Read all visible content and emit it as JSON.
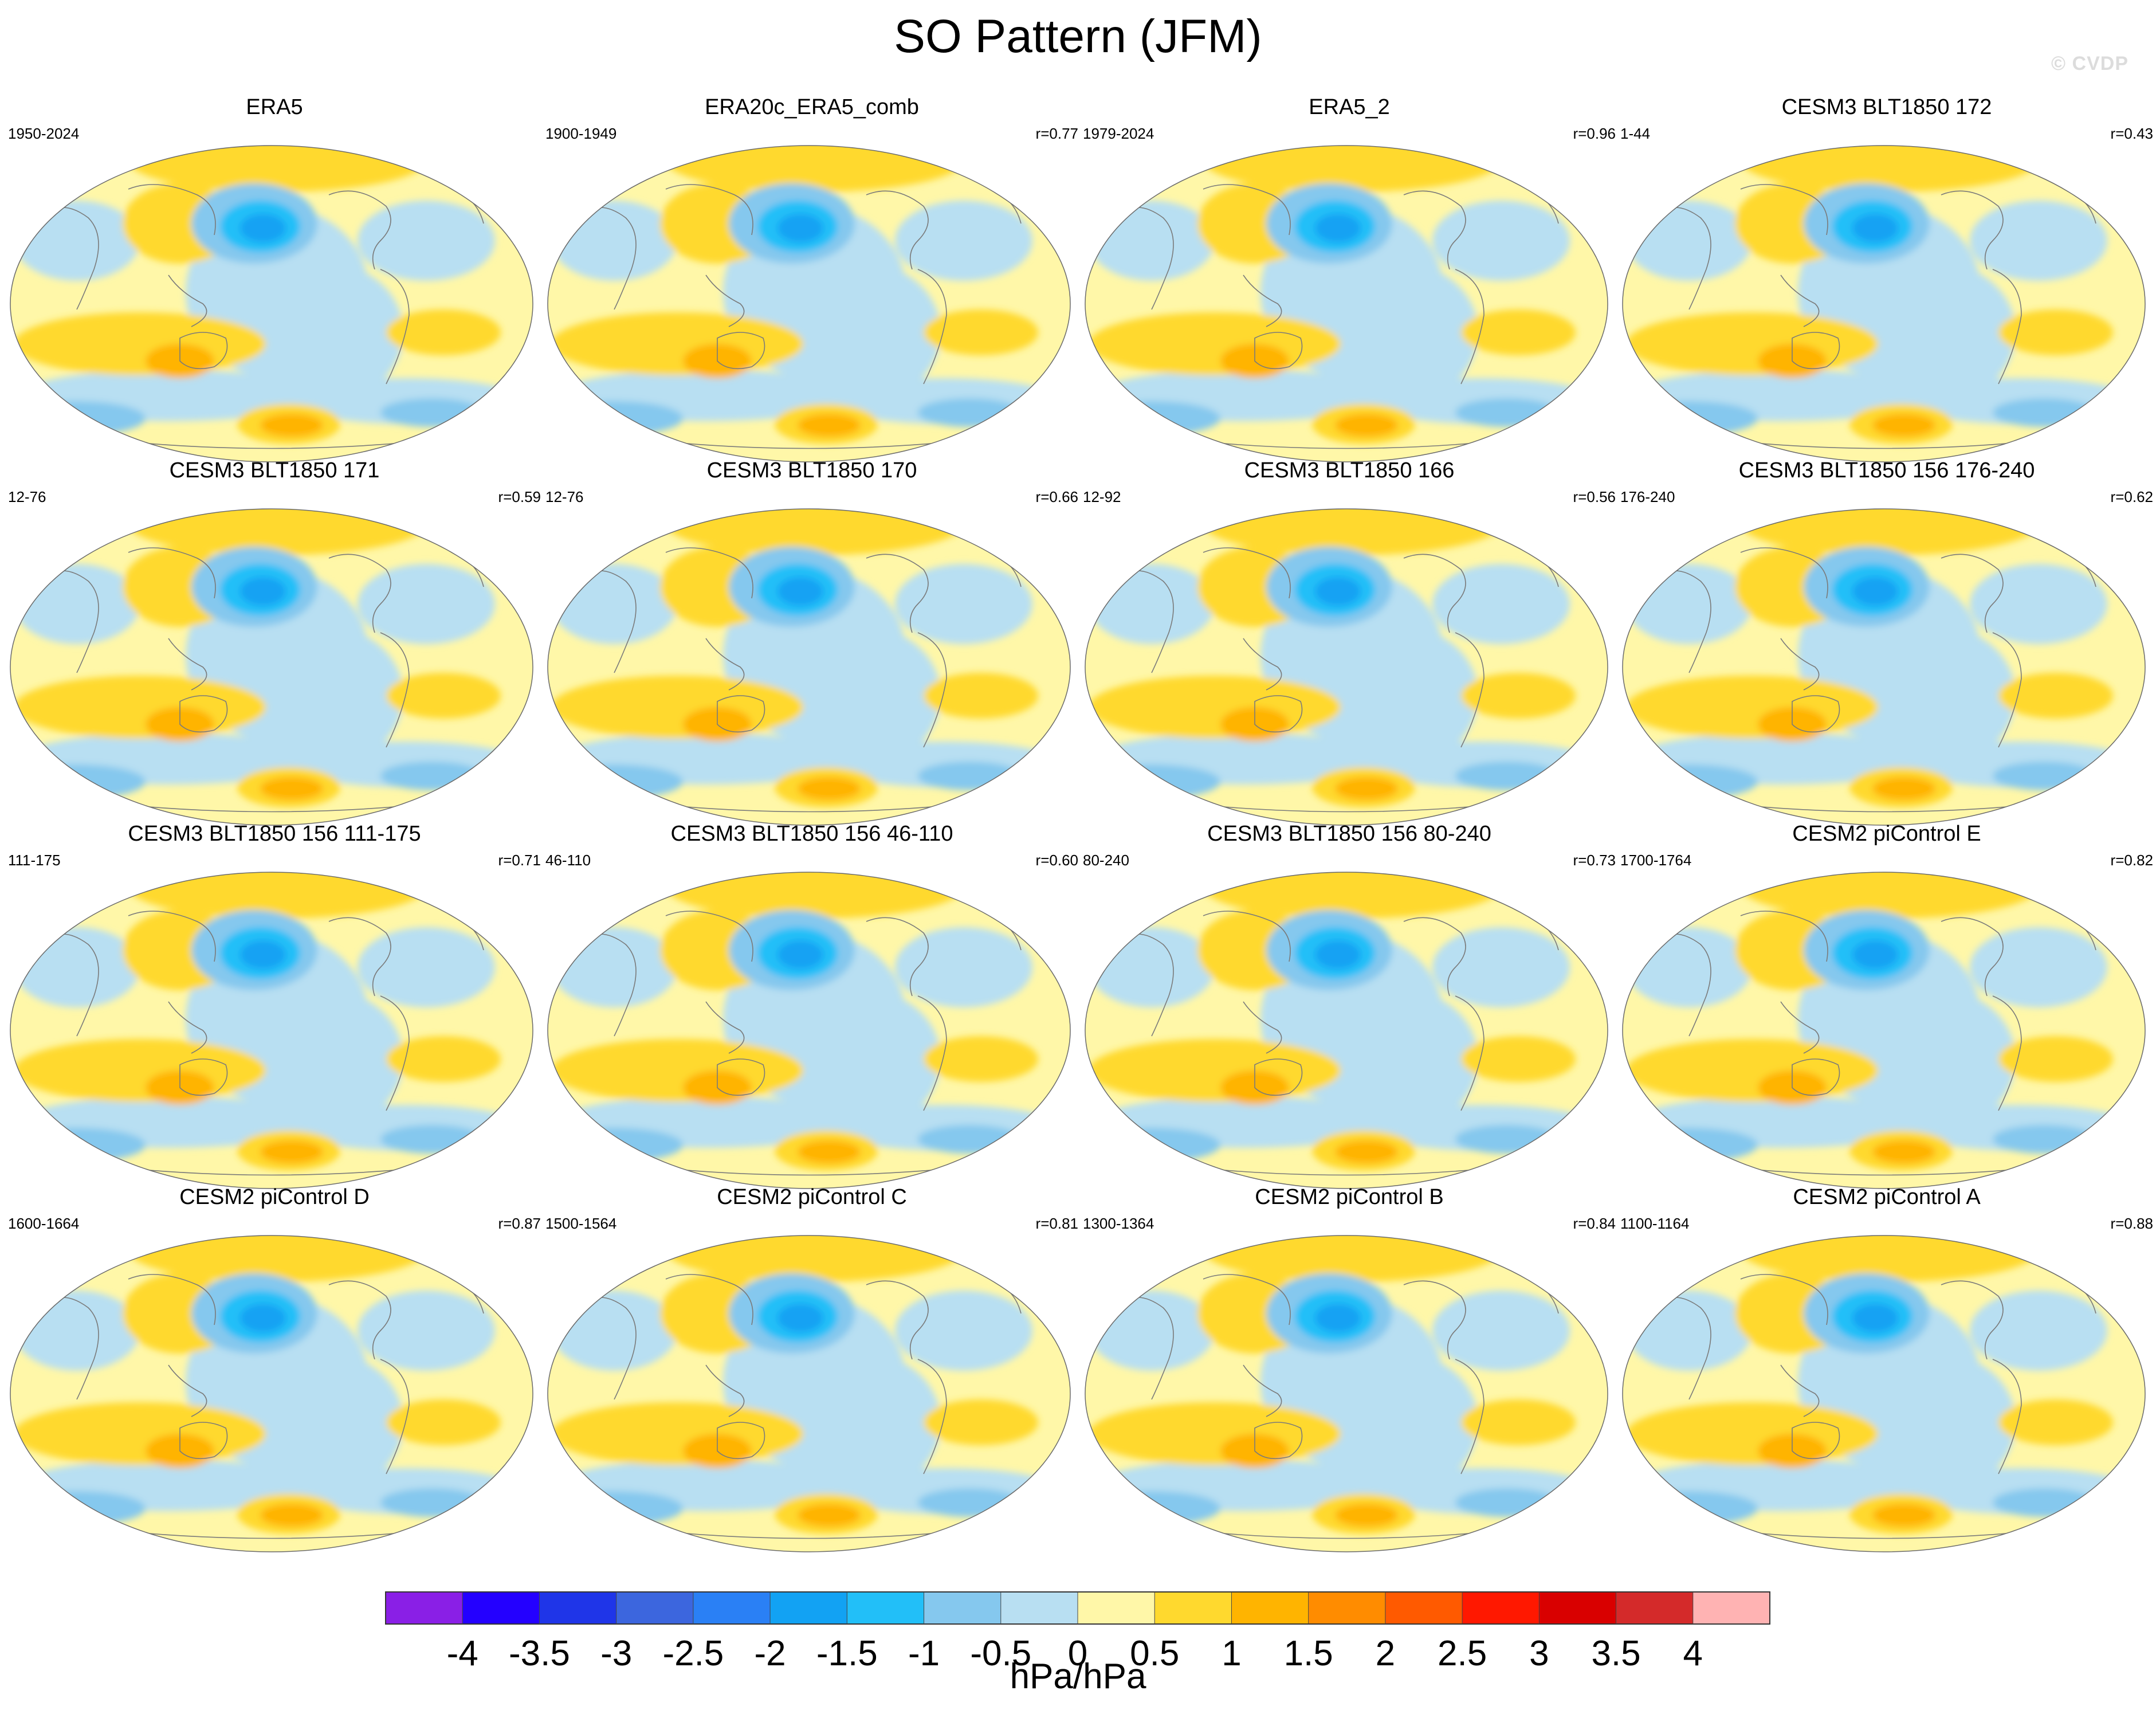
{
  "title": "SO Pattern (JFM)",
  "watermark": "© CVDP",
  "chart_data": {
    "type": "map-panels",
    "variable": "SO Pattern",
    "season": "JFM",
    "projection": "Robinson (Pacific centered)",
    "panels": [
      {
        "title": "ERA5",
        "years": "1950-2024",
        "r": ""
      },
      {
        "title": "ERA20c_ERA5_comb",
        "years": "1900-1949",
        "r": "r=0.77"
      },
      {
        "title": "ERA5_2",
        "years": "1979-2024",
        "r": "r=0.96"
      },
      {
        "title": "CESM3 BLT1850 172",
        "years": "1-44",
        "r": "r=0.43"
      },
      {
        "title": "CESM3 BLT1850 171",
        "years": "12-76",
        "r": "r=0.59"
      },
      {
        "title": "CESM3 BLT1850 170",
        "years": "12-76",
        "r": "r=0.66"
      },
      {
        "title": "CESM3 BLT1850 166",
        "years": "12-92",
        "r": "r=0.56"
      },
      {
        "title": "CESM3 BLT1850 156 176-240",
        "years": "176-240",
        "r": "r=0.62"
      },
      {
        "title": "CESM3 BLT1850 156 111-175",
        "years": "111-175",
        "r": "r=0.71"
      },
      {
        "title": "CESM3 BLT1850 156 46-110",
        "years": "46-110",
        "r": "r=0.60"
      },
      {
        "title": "CESM3 BLT1850 156 80-240",
        "years": "80-240",
        "r": "r=0.73"
      },
      {
        "title": "CESM2 piControl E",
        "years": "1700-1764",
        "r": "r=0.82"
      },
      {
        "title": "CESM2 piControl D",
        "years": "1600-1664",
        "r": "r=0.87"
      },
      {
        "title": "CESM2 piControl C",
        "years": "1500-1564",
        "r": "r=0.81"
      },
      {
        "title": "CESM2 piControl B",
        "years": "1300-1364",
        "r": "r=0.84"
      },
      {
        "title": "CESM2 piControl A",
        "years": "1100-1164",
        "r": "r=0.88"
      }
    ],
    "colorbar": {
      "ticks": [
        "-4",
        "-3.5",
        "-3",
        "-2.5",
        "-2",
        "-1.5",
        "-1",
        "-0.5",
        "0",
        "0.5",
        "1",
        "1.5",
        "2",
        "2.5",
        "3",
        "3.5",
        "4"
      ],
      "colors": [
        "#8a1fe6",
        "#2400ff",
        "#1f35e8",
        "#3c66de",
        "#2a80f5",
        "#12a2f3",
        "#22bff8",
        "#85c8ee",
        "#b8dff2",
        "#fff7a8",
        "#ffd92e",
        "#ffb400",
        "#ff8c00",
        "#ff5a00",
        "#ff1800",
        "#d90000",
        "#d42a2a",
        "#ffb3b3"
      ],
      "units": "hPa/hPa"
    }
  }
}
